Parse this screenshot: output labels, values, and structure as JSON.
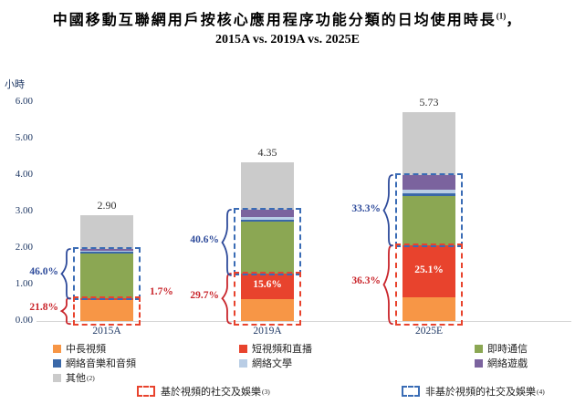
{
  "page": {
    "title_main": "中國移動互聯網用戶按核心應用程序功能分類的日均使用時長",
    "title_sup": "(1)",
    "title_tail": "，",
    "subtitle": "2015A vs. 2019A vs. 2025E"
  },
  "chart_data": {
    "type": "stacked-bar",
    "title": "中國移動互聯網用戶按核心應用程序功能分類的日均使用時長(1)，2015A vs. 2019A vs. 2025E",
    "ylabel": "小時",
    "ylim": [
      0,
      6
    ],
    "ytick_labels": [
      "0.00",
      "1.00",
      "2.00",
      "3.00",
      "4.00",
      "5.00",
      "6.00"
    ],
    "grid": "baseline-only",
    "categories": [
      "2015A",
      "2019A",
      "2025E"
    ],
    "totals": [
      "2.90",
      "4.35",
      "5.73"
    ],
    "series": [
      {
        "name": "中長視頻",
        "color": "#F79646",
        "values": [
          0.58,
          0.61,
          0.64
        ]
      },
      {
        "name": "短視頻和直播",
        "color": "#E8432D",
        "values": [
          0.05,
          0.68,
          1.44
        ]
      },
      {
        "name": "即時通信",
        "color": "#8BA753",
        "values": [
          1.21,
          1.44,
          1.34
        ]
      },
      {
        "name": "網絡音樂和音頻",
        "color": "#3A68A8",
        "values": [
          0.05,
          0.05,
          0.07
        ]
      },
      {
        "name": "網絡文學",
        "color": "#B9CDE5",
        "values": [
          0.04,
          0.06,
          0.1
        ]
      },
      {
        "name": "網絡遊戲",
        "color": "#7B639E",
        "values": [
          0.04,
          0.22,
          0.4
        ]
      },
      {
        "name": "其他",
        "color": "#CBCBCB",
        "sup": "(2)",
        "values": [
          0.93,
          1.29,
          1.74
        ]
      }
    ],
    "groups": {
      "video": {
        "label": "基於視頻的社交及娛樂",
        "sup": "(3)",
        "series_idx": [
          0,
          1
        ],
        "border_color": "#E8432D",
        "text_color": "#C9252B",
        "pcts": [
          "21.8%",
          "29.7%",
          "36.3%"
        ]
      },
      "non_video": {
        "label": "非基於視頻的社交及娛樂",
        "sup": "(4)",
        "series_idx": [
          2,
          3,
          4,
          5
        ],
        "border_color": "#3A6CB5",
        "text_color": "#2E4B9B",
        "pcts": [
          "46.0%",
          "40.6%",
          "33.3%"
        ]
      }
    },
    "short_video_live_pcts": [
      "1.7%",
      "15.6%",
      "25.1%"
    ]
  }
}
